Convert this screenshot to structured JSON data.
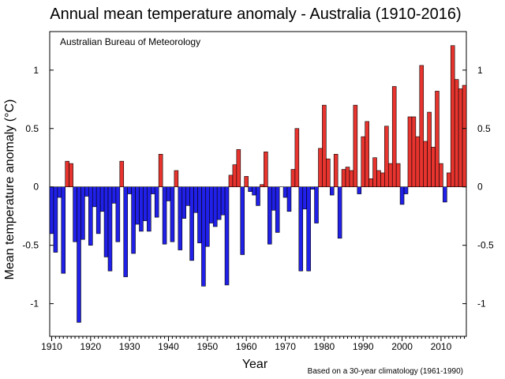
{
  "chart_data": {
    "type": "bar",
    "title": "Annual mean temperature anomaly - Australia (1910-2016)",
    "xlabel": "Year",
    "ylabel": "Mean temperature anomaly (°C)",
    "annotation": "Australian Bureau of Meteorology",
    "footnote": "Based on a 30-year climatology (1961-1990)",
    "xlim": [
      1909.5,
      2016.5
    ],
    "ylim": [
      -1.28,
      1.33
    ],
    "x_ticks": [
      "1910",
      "1920",
      "1930",
      "1940",
      "1950",
      "1960",
      "1970",
      "1980",
      "1990",
      "2000",
      "2010"
    ],
    "y_ticks": [
      "1",
      "0.5",
      "0",
      "-0.5",
      "-1"
    ],
    "colors": {
      "positive": "#e8342e",
      "negative": "#2020e8",
      "edge": "#000000"
    },
    "series": [
      {
        "x": [
          1910,
          1911,
          1912,
          1913,
          1914,
          1915,
          1916,
          1917,
          1918,
          1919,
          1920,
          1921,
          1922,
          1923,
          1924,
          1925,
          1926,
          1927,
          1928,
          1929,
          1930,
          1931,
          1932,
          1933,
          1934,
          1935,
          1936,
          1937,
          1938,
          1939,
          1940,
          1941,
          1942,
          1943,
          1944,
          1945,
          1946,
          1947,
          1948,
          1949,
          1950,
          1951,
          1952,
          1953,
          1954,
          1955,
          1956,
          1957,
          1958,
          1959,
          1960,
          1961,
          1962,
          1963,
          1964,
          1965,
          1966,
          1967,
          1968,
          1969,
          1970,
          1971,
          1972,
          1973,
          1974,
          1975,
          1976,
          1977,
          1978,
          1979,
          1980,
          1981,
          1982,
          1983,
          1984,
          1985,
          1986,
          1987,
          1988,
          1989,
          1990,
          1991,
          1992,
          1993,
          1994,
          1995,
          1996,
          1997,
          1998,
          1999,
          2000,
          2001,
          2002,
          2003,
          2004,
          2005,
          2006,
          2007,
          2008,
          2009,
          2010,
          2011,
          2012,
          2013,
          2014,
          2015,
          2016
        ],
        "values": [
          -0.4,
          -0.56,
          -0.09,
          -0.74,
          0.22,
          0.2,
          -0.47,
          -1.16,
          -0.45,
          -0.08,
          -0.5,
          -0.17,
          -0.4,
          -0.21,
          -0.6,
          -0.72,
          -0.14,
          -0.47,
          0.22,
          -0.77,
          -0.06,
          -0.57,
          -0.32,
          -0.38,
          -0.29,
          -0.38,
          -0.06,
          -0.26,
          0.28,
          -0.49,
          -0.12,
          -0.47,
          0.14,
          -0.54,
          -0.27,
          -0.16,
          -0.63,
          -0.22,
          -0.48,
          -0.85,
          -0.51,
          -0.31,
          -0.34,
          -0.28,
          -0.24,
          -0.84,
          0.1,
          0.19,
          0.32,
          -0.58,
          0.09,
          -0.04,
          -0.07,
          -0.16,
          0.02,
          0.3,
          -0.49,
          -0.2,
          -0.39,
          0,
          -0.09,
          -0.21,
          0.15,
          0.5,
          -0.72,
          -0.19,
          -0.72,
          -0.02,
          -0.31,
          0.33,
          0.7,
          0.24,
          -0.07,
          0.28,
          -0.44,
          0.15,
          0.17,
          0.14,
          0.7,
          -0.06,
          0.43,
          0.56,
          0.07,
          0.25,
          0.14,
          0.12,
          0.52,
          0.2,
          0.86,
          0.2,
          -0.15,
          -0.06,
          0.6,
          0.6,
          0.43,
          1.04,
          0.39,
          0.64,
          0.34,
          0.82,
          0.2,
          -0.13,
          0.12,
          1.21,
          0.92,
          0.84,
          0.87
        ]
      }
    ]
  }
}
